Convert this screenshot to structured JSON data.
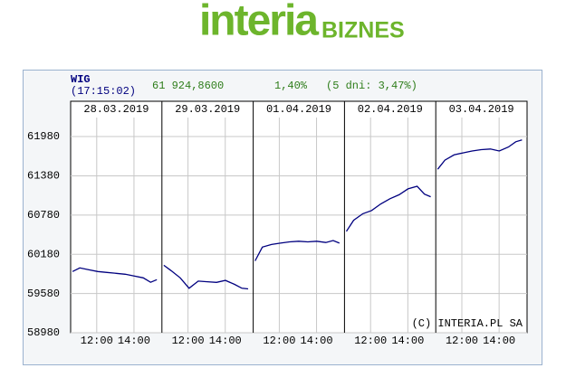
{
  "logo": {
    "brand": "interia",
    "section": "BIZNES"
  },
  "chart_data": {
    "type": "line",
    "title": "WIG",
    "subtitle": "(17:15:02)",
    "last_value": "61 924,8600",
    "change": "1,40%",
    "change_5d": "(5 dni: 3,47%)",
    "credit": "(C) INTERIA.PL SA",
    "color": "#00007f",
    "grid": true,
    "ylim": [
      58980,
      62520
    ],
    "yticks": [
      58980,
      59580,
      60180,
      60780,
      61380,
      61980
    ],
    "xlim": [
      10.6,
      15.5
    ],
    "xticks": [
      {
        "value": 12,
        "label": "12:00"
      },
      {
        "value": 14,
        "label": "14:00"
      }
    ],
    "x": [
      10.7,
      11.09,
      11.58,
      12.06,
      12.55,
      13.04,
      13.53,
      14.01,
      14.5,
      14.89,
      15.23
    ],
    "panels": [
      {
        "date": "28.03.2019",
        "values": [
          59916,
          59971,
          59943,
          59916,
          59902,
          59888,
          59874,
          59847,
          59819,
          59751,
          59792
        ]
      },
      {
        "date": "29.03.2019",
        "values": [
          60012,
          59930,
          59820,
          59660,
          59770,
          59760,
          59750,
          59780,
          59720,
          59660,
          59650
        ]
      },
      {
        "date": "01.04.2019",
        "values": [
          60080,
          60290,
          60330,
          60350,
          60370,
          60380,
          60370,
          60380,
          60360,
          60390,
          60350
        ]
      },
      {
        "date": "02.04.2019",
        "values": [
          60530,
          60700,
          60800,
          60850,
          60950,
          61030,
          61090,
          61180,
          61220,
          61100,
          61060
        ]
      },
      {
        "date": "03.04.2019",
        "values": [
          61480,
          61620,
          61700,
          61730,
          61760,
          61780,
          61790,
          61760,
          61820,
          61900,
          61930
        ]
      }
    ]
  }
}
